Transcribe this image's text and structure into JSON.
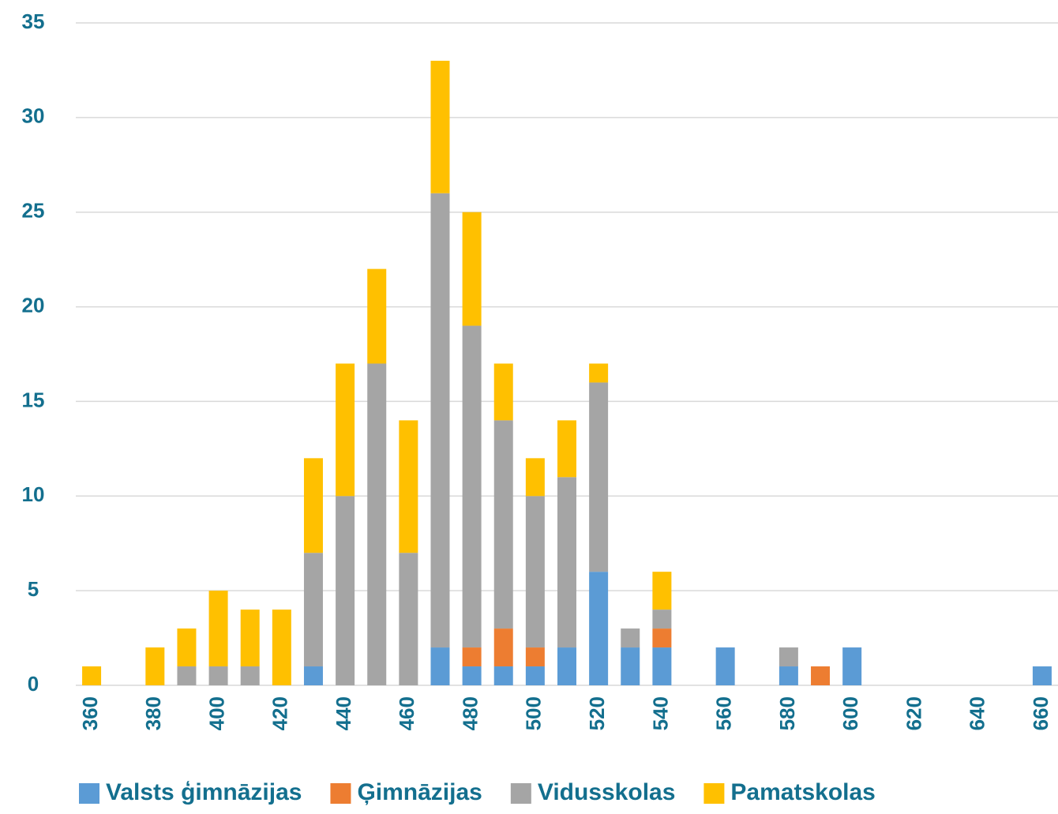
{
  "chart_data": {
    "type": "stacked_bar",
    "categories": [
      "360",
      null,
      "380",
      null,
      "400",
      null,
      "420",
      null,
      "440",
      null,
      "460",
      null,
      "480",
      null,
      "500",
      null,
      "520",
      null,
      "540",
      null,
      "560",
      null,
      "580",
      null,
      "600",
      null,
      "620",
      null,
      "640",
      null,
      "660"
    ],
    "series": [
      {
        "name": "Valsts ģimnāzijas",
        "color": "#5b9bd5",
        "values": [
          0,
          0,
          0,
          0,
          0,
          0,
          0,
          1,
          0,
          0,
          0,
          2,
          1,
          1,
          1,
          2,
          6,
          2,
          2,
          0,
          2,
          0,
          1,
          0,
          2,
          0,
          0,
          0,
          0,
          0,
          1
        ]
      },
      {
        "name": "Ģimnāzijas",
        "color": "#ed7d31",
        "values": [
          0,
          0,
          0,
          0,
          0,
          0,
          0,
          0,
          0,
          0,
          0,
          0,
          1,
          2,
          1,
          0,
          0,
          0,
          1,
          0,
          0,
          0,
          0,
          1,
          0,
          0,
          0,
          0,
          0,
          0,
          0
        ]
      },
      {
        "name": "Vidusskolas",
        "color": "#a5a5a5",
        "values": [
          0,
          0,
          0,
          1,
          1,
          1,
          0,
          6,
          10,
          17,
          7,
          24,
          17,
          11,
          8,
          9,
          10,
          1,
          1,
          0,
          0,
          0,
          1,
          0,
          0,
          0,
          0,
          0,
          0,
          0,
          0
        ]
      },
      {
        "name": "Pamatskolas",
        "color": "#ffc000",
        "values": [
          1,
          0,
          2,
          2,
          4,
          3,
          4,
          5,
          7,
          5,
          7,
          7,
          6,
          3,
          2,
          3,
          1,
          0,
          2,
          0,
          0,
          0,
          0,
          0,
          0,
          0,
          0,
          0,
          0,
          0,
          0
        ]
      }
    ],
    "ylim": [
      0,
      35
    ],
    "yticks": [
      0,
      5,
      10,
      15,
      20,
      25,
      30,
      35
    ],
    "grid": true,
    "legend": "bottom"
  }
}
